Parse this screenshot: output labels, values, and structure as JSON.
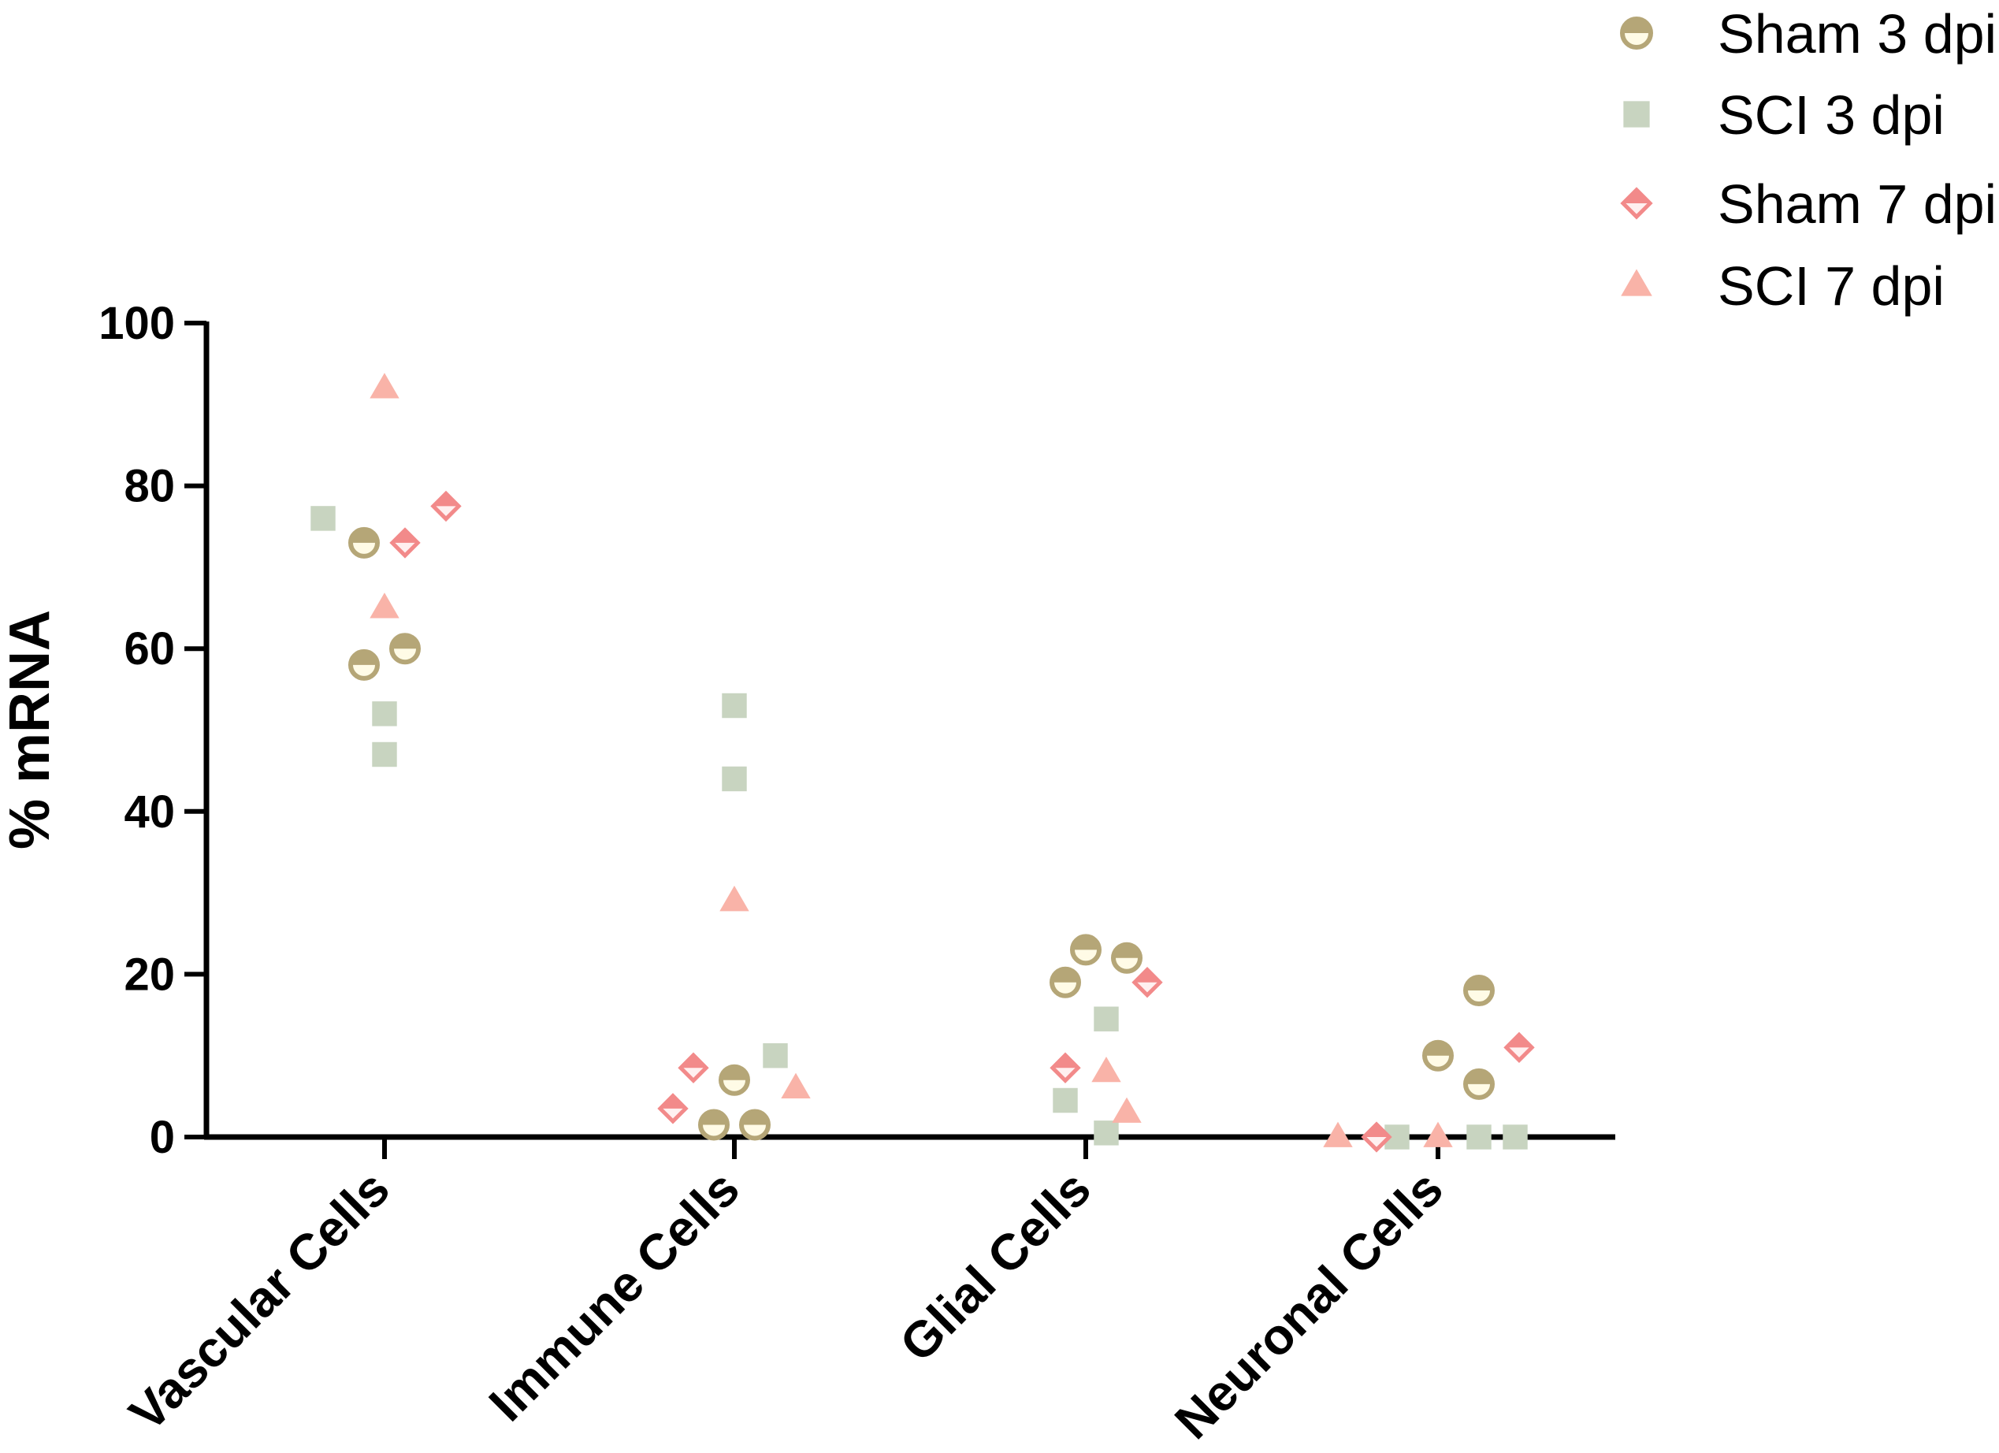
{
  "chart_data": {
    "type": "scatter",
    "title": "",
    "xlabel": "",
    "ylabel": "% mRNA",
    "ylim": [
      0,
      100
    ],
    "yticks": [
      "0",
      "20",
      "40",
      "60",
      "80",
      "100"
    ],
    "categories": [
      "Vascular Cells",
      "Immune Cells",
      "Glial Cells",
      "Neuronal Cells"
    ],
    "legend_position": "top-right",
    "series": [
      {
        "name": "Sham 3 dpi",
        "marker": "half-circle",
        "color": "#b5a677",
        "points": [
          {
            "category": "Vascular Cells",
            "value": 73
          },
          {
            "category": "Vascular Cells",
            "value": 58
          },
          {
            "category": "Vascular Cells",
            "value": 60
          },
          {
            "category": "Immune Cells",
            "value": 7
          },
          {
            "category": "Immune Cells",
            "value": 1.5
          },
          {
            "category": "Immune Cells",
            "value": 1.5
          },
          {
            "category": "Glial Cells",
            "value": 23
          },
          {
            "category": "Glial Cells",
            "value": 22
          },
          {
            "category": "Glial Cells",
            "value": 19
          },
          {
            "category": "Neuronal Cells",
            "value": 18
          },
          {
            "category": "Neuronal Cells",
            "value": 10
          },
          {
            "category": "Neuronal Cells",
            "value": 6.5
          }
        ]
      },
      {
        "name": "SCI 3 dpi",
        "marker": "square",
        "color": "#c8d4c0",
        "points": [
          {
            "category": "Vascular Cells",
            "value": 76
          },
          {
            "category": "Vascular Cells",
            "value": 52
          },
          {
            "category": "Vascular Cells",
            "value": 47
          },
          {
            "category": "Immune Cells",
            "value": 53
          },
          {
            "category": "Immune Cells",
            "value": 44
          },
          {
            "category": "Immune Cells",
            "value": 10
          },
          {
            "category": "Glial Cells",
            "value": 14.5
          },
          {
            "category": "Glial Cells",
            "value": 4.5
          },
          {
            "category": "Glial Cells",
            "value": 0.5
          },
          {
            "category": "Neuronal Cells",
            "value": 0
          },
          {
            "category": "Neuronal Cells",
            "value": 0
          },
          {
            "category": "Neuronal Cells",
            "value": 0
          }
        ]
      },
      {
        "name": "Sham 7 dpi",
        "marker": "half-diamond",
        "color": "#f28a8a",
        "points": [
          {
            "category": "Vascular Cells",
            "value": 77.5
          },
          {
            "category": "Vascular Cells",
            "value": 73
          },
          {
            "category": "Immune Cells",
            "value": 8.5
          },
          {
            "category": "Immune Cells",
            "value": 3.5
          },
          {
            "category": "Glial Cells",
            "value": 19
          },
          {
            "category": "Glial Cells",
            "value": 8.5
          },
          {
            "category": "Neuronal Cells",
            "value": 11
          },
          {
            "category": "Neuronal Cells",
            "value": 0
          }
        ]
      },
      {
        "name": "SCI 7 dpi",
        "marker": "triangle",
        "color": "#f9b3a8",
        "points": [
          {
            "category": "Vascular Cells",
            "value": 92
          },
          {
            "category": "Vascular Cells",
            "value": 65
          },
          {
            "category": "Immune Cells",
            "value": 29
          },
          {
            "category": "Immune Cells",
            "value": 6
          },
          {
            "category": "Glial Cells",
            "value": 8
          },
          {
            "category": "Glial Cells",
            "value": 3
          },
          {
            "category": "Neuronal Cells",
            "value": 0
          },
          {
            "category": "Neuronal Cells",
            "value": 0
          }
        ]
      }
    ]
  }
}
